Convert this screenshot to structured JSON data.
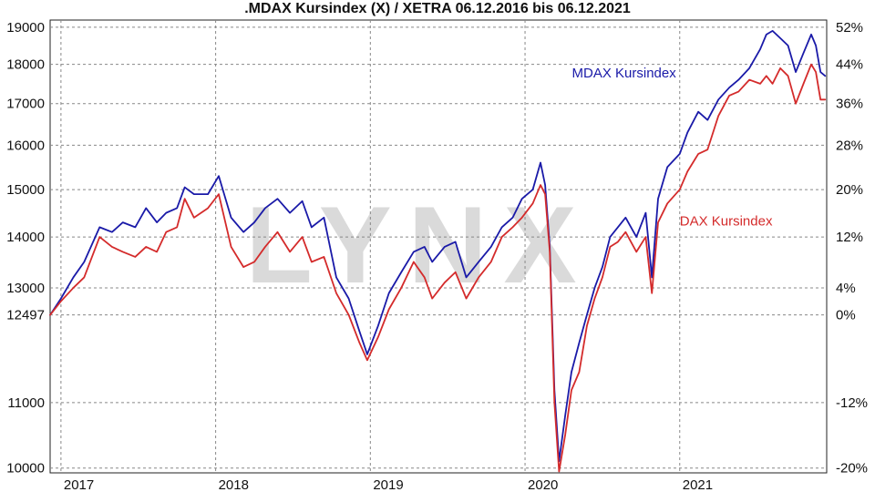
{
  "chart_data": {
    "type": "line",
    "title": ".MDAX Kursindex (X) / XETRA 06.12.2016 bis 06.12.2021",
    "watermark": "LYNX",
    "background_color": "#ffffff",
    "grid": true,
    "y_left": {
      "range": [
        9930,
        19200
      ],
      "scale": "log",
      "ticks": [
        {
          "value": 19000,
          "label": "19000"
        },
        {
          "value": 18000,
          "label": "18000"
        },
        {
          "value": 17000,
          "label": "17000"
        },
        {
          "value": 16000,
          "label": "16000"
        },
        {
          "value": 15000,
          "label": "15000"
        },
        {
          "value": 14000,
          "label": "14000"
        },
        {
          "value": 13000,
          "label": "13000"
        },
        {
          "value": 12497,
          "label": "12497"
        },
        {
          "value": 11000,
          "label": "11000"
        },
        {
          "value": 10000,
          "label": "10000"
        }
      ]
    },
    "y_right": {
      "ticks": [
        {
          "value": 52,
          "label": "52%"
        },
        {
          "value": 44,
          "label": "44%"
        },
        {
          "value": 36,
          "label": "36%"
        },
        {
          "value": 28,
          "label": "28%"
        },
        {
          "value": 20,
          "label": "20%"
        },
        {
          "value": 12,
          "label": "12%"
        },
        {
          "value": 4,
          "label": "4%"
        },
        {
          "value": 0,
          "label": "0%"
        },
        {
          "value": -12,
          "label": "-12%"
        },
        {
          "value": -20,
          "label": "-20%"
        }
      ]
    },
    "x_axis": {
      "range": [
        2016.93,
        2021.95
      ],
      "ticks": [
        {
          "value": 2017.0,
          "label": "2017"
        },
        {
          "value": 2018.0,
          "label": "2018"
        },
        {
          "value": 2019.0,
          "label": "2019"
        },
        {
          "value": 2020.0,
          "label": "2020"
        },
        {
          "value": 2021.0,
          "label": "2021"
        }
      ]
    },
    "series": [
      {
        "name": "MDAX Kursindex",
        "color": "#1a1aa8",
        "points": [
          [
            2016.93,
            12497
          ],
          [
            2017.0,
            12800
          ],
          [
            2017.08,
            13200
          ],
          [
            2017.15,
            13500
          ],
          [
            2017.25,
            14200
          ],
          [
            2017.33,
            14100
          ],
          [
            2017.4,
            14300
          ],
          [
            2017.48,
            14200
          ],
          [
            2017.55,
            14600
          ],
          [
            2017.62,
            14300
          ],
          [
            2017.68,
            14500
          ],
          [
            2017.75,
            14600
          ],
          [
            2017.8,
            15050
          ],
          [
            2017.86,
            14900
          ],
          [
            2017.95,
            14900
          ],
          [
            2018.02,
            15300
          ],
          [
            2018.1,
            14400
          ],
          [
            2018.18,
            14100
          ],
          [
            2018.25,
            14300
          ],
          [
            2018.32,
            14600
          ],
          [
            2018.4,
            14800
          ],
          [
            2018.48,
            14500
          ],
          [
            2018.56,
            14750
          ],
          [
            2018.62,
            14200
          ],
          [
            2018.7,
            14400
          ],
          [
            2018.78,
            13200
          ],
          [
            2018.86,
            12800
          ],
          [
            2018.93,
            12200
          ],
          [
            2018.98,
            11800
          ],
          [
            2019.05,
            12300
          ],
          [
            2019.12,
            12900
          ],
          [
            2019.2,
            13300
          ],
          [
            2019.28,
            13700
          ],
          [
            2019.35,
            13800
          ],
          [
            2019.4,
            13500
          ],
          [
            2019.48,
            13800
          ],
          [
            2019.55,
            13900
          ],
          [
            2019.62,
            13200
          ],
          [
            2019.7,
            13500
          ],
          [
            2019.78,
            13800
          ],
          [
            2019.85,
            14200
          ],
          [
            2019.92,
            14400
          ],
          [
            2019.98,
            14800
          ],
          [
            2020.05,
            15000
          ],
          [
            2020.1,
            15600
          ],
          [
            2020.13,
            15100
          ],
          [
            2020.16,
            13800
          ],
          [
            2020.19,
            11200
          ],
          [
            2020.22,
            10100
          ],
          [
            2020.26,
            10800
          ],
          [
            2020.3,
            11500
          ],
          [
            2020.35,
            12000
          ],
          [
            2020.4,
            12500
          ],
          [
            2020.45,
            13000
          ],
          [
            2020.5,
            13400
          ],
          [
            2020.55,
            14000
          ],
          [
            2020.6,
            14200
          ],
          [
            2020.65,
            14400
          ],
          [
            2020.72,
            14000
          ],
          [
            2020.78,
            14500
          ],
          [
            2020.82,
            13200
          ],
          [
            2020.86,
            14800
          ],
          [
            2020.92,
            15500
          ],
          [
            2021.0,
            15800
          ],
          [
            2021.05,
            16300
          ],
          [
            2021.12,
            16800
          ],
          [
            2021.18,
            16600
          ],
          [
            2021.25,
            17100
          ],
          [
            2021.32,
            17400
          ],
          [
            2021.38,
            17600
          ],
          [
            2021.45,
            17900
          ],
          [
            2021.52,
            18400
          ],
          [
            2021.56,
            18800
          ],
          [
            2021.6,
            18900
          ],
          [
            2021.65,
            18700
          ],
          [
            2021.7,
            18500
          ],
          [
            2021.75,
            17800
          ],
          [
            2021.8,
            18300
          ],
          [
            2021.85,
            18800
          ],
          [
            2021.88,
            18500
          ],
          [
            2021.91,
            17800
          ],
          [
            2021.94,
            17700
          ]
        ]
      },
      {
        "name": "DAX Kursindex",
        "color": "#d42b2b",
        "points": [
          [
            2016.93,
            12497
          ],
          [
            2017.0,
            12750
          ],
          [
            2017.08,
            13000
          ],
          [
            2017.15,
            13200
          ],
          [
            2017.25,
            14000
          ],
          [
            2017.33,
            13800
          ],
          [
            2017.4,
            13700
          ],
          [
            2017.48,
            13600
          ],
          [
            2017.55,
            13800
          ],
          [
            2017.62,
            13700
          ],
          [
            2017.68,
            14100
          ],
          [
            2017.75,
            14200
          ],
          [
            2017.8,
            14800
          ],
          [
            2017.86,
            14400
          ],
          [
            2017.95,
            14600
          ],
          [
            2018.02,
            14900
          ],
          [
            2018.1,
            13800
          ],
          [
            2018.18,
            13400
          ],
          [
            2018.25,
            13500
          ],
          [
            2018.32,
            13800
          ],
          [
            2018.4,
            14100
          ],
          [
            2018.48,
            13700
          ],
          [
            2018.56,
            14000
          ],
          [
            2018.62,
            13500
          ],
          [
            2018.7,
            13600
          ],
          [
            2018.78,
            12900
          ],
          [
            2018.86,
            12500
          ],
          [
            2018.93,
            12000
          ],
          [
            2018.98,
            11700
          ],
          [
            2019.05,
            12100
          ],
          [
            2019.12,
            12600
          ],
          [
            2019.2,
            13000
          ],
          [
            2019.28,
            13500
          ],
          [
            2019.35,
            13200
          ],
          [
            2019.4,
            12800
          ],
          [
            2019.48,
            13100
          ],
          [
            2019.55,
            13300
          ],
          [
            2019.62,
            12800
          ],
          [
            2019.7,
            13200
          ],
          [
            2019.78,
            13500
          ],
          [
            2019.85,
            14000
          ],
          [
            2019.92,
            14200
          ],
          [
            2019.98,
            14400
          ],
          [
            2020.05,
            14700
          ],
          [
            2020.1,
            15100
          ],
          [
            2020.13,
            14900
          ],
          [
            2020.16,
            13700
          ],
          [
            2020.19,
            11000
          ],
          [
            2020.22,
            9950
          ],
          [
            2020.26,
            10500
          ],
          [
            2020.3,
            11200
          ],
          [
            2020.35,
            11500
          ],
          [
            2020.4,
            12300
          ],
          [
            2020.45,
            12800
          ],
          [
            2020.5,
            13200
          ],
          [
            2020.55,
            13800
          ],
          [
            2020.6,
            13900
          ],
          [
            2020.65,
            14100
          ],
          [
            2020.72,
            13700
          ],
          [
            2020.78,
            14000
          ],
          [
            2020.82,
            12900
          ],
          [
            2020.86,
            14300
          ],
          [
            2020.92,
            14700
          ],
          [
            2021.0,
            15000
          ],
          [
            2021.05,
            15400
          ],
          [
            2021.12,
            15800
          ],
          [
            2021.18,
            15900
          ],
          [
            2021.25,
            16700
          ],
          [
            2021.32,
            17200
          ],
          [
            2021.38,
            17300
          ],
          [
            2021.45,
            17600
          ],
          [
            2021.52,
            17500
          ],
          [
            2021.56,
            17700
          ],
          [
            2021.6,
            17500
          ],
          [
            2021.65,
            17900
          ],
          [
            2021.7,
            17700
          ],
          [
            2021.75,
            17000
          ],
          [
            2021.8,
            17500
          ],
          [
            2021.85,
            18000
          ],
          [
            2021.88,
            17800
          ],
          [
            2021.91,
            17100
          ],
          [
            2021.94,
            17100
          ]
        ]
      }
    ]
  }
}
